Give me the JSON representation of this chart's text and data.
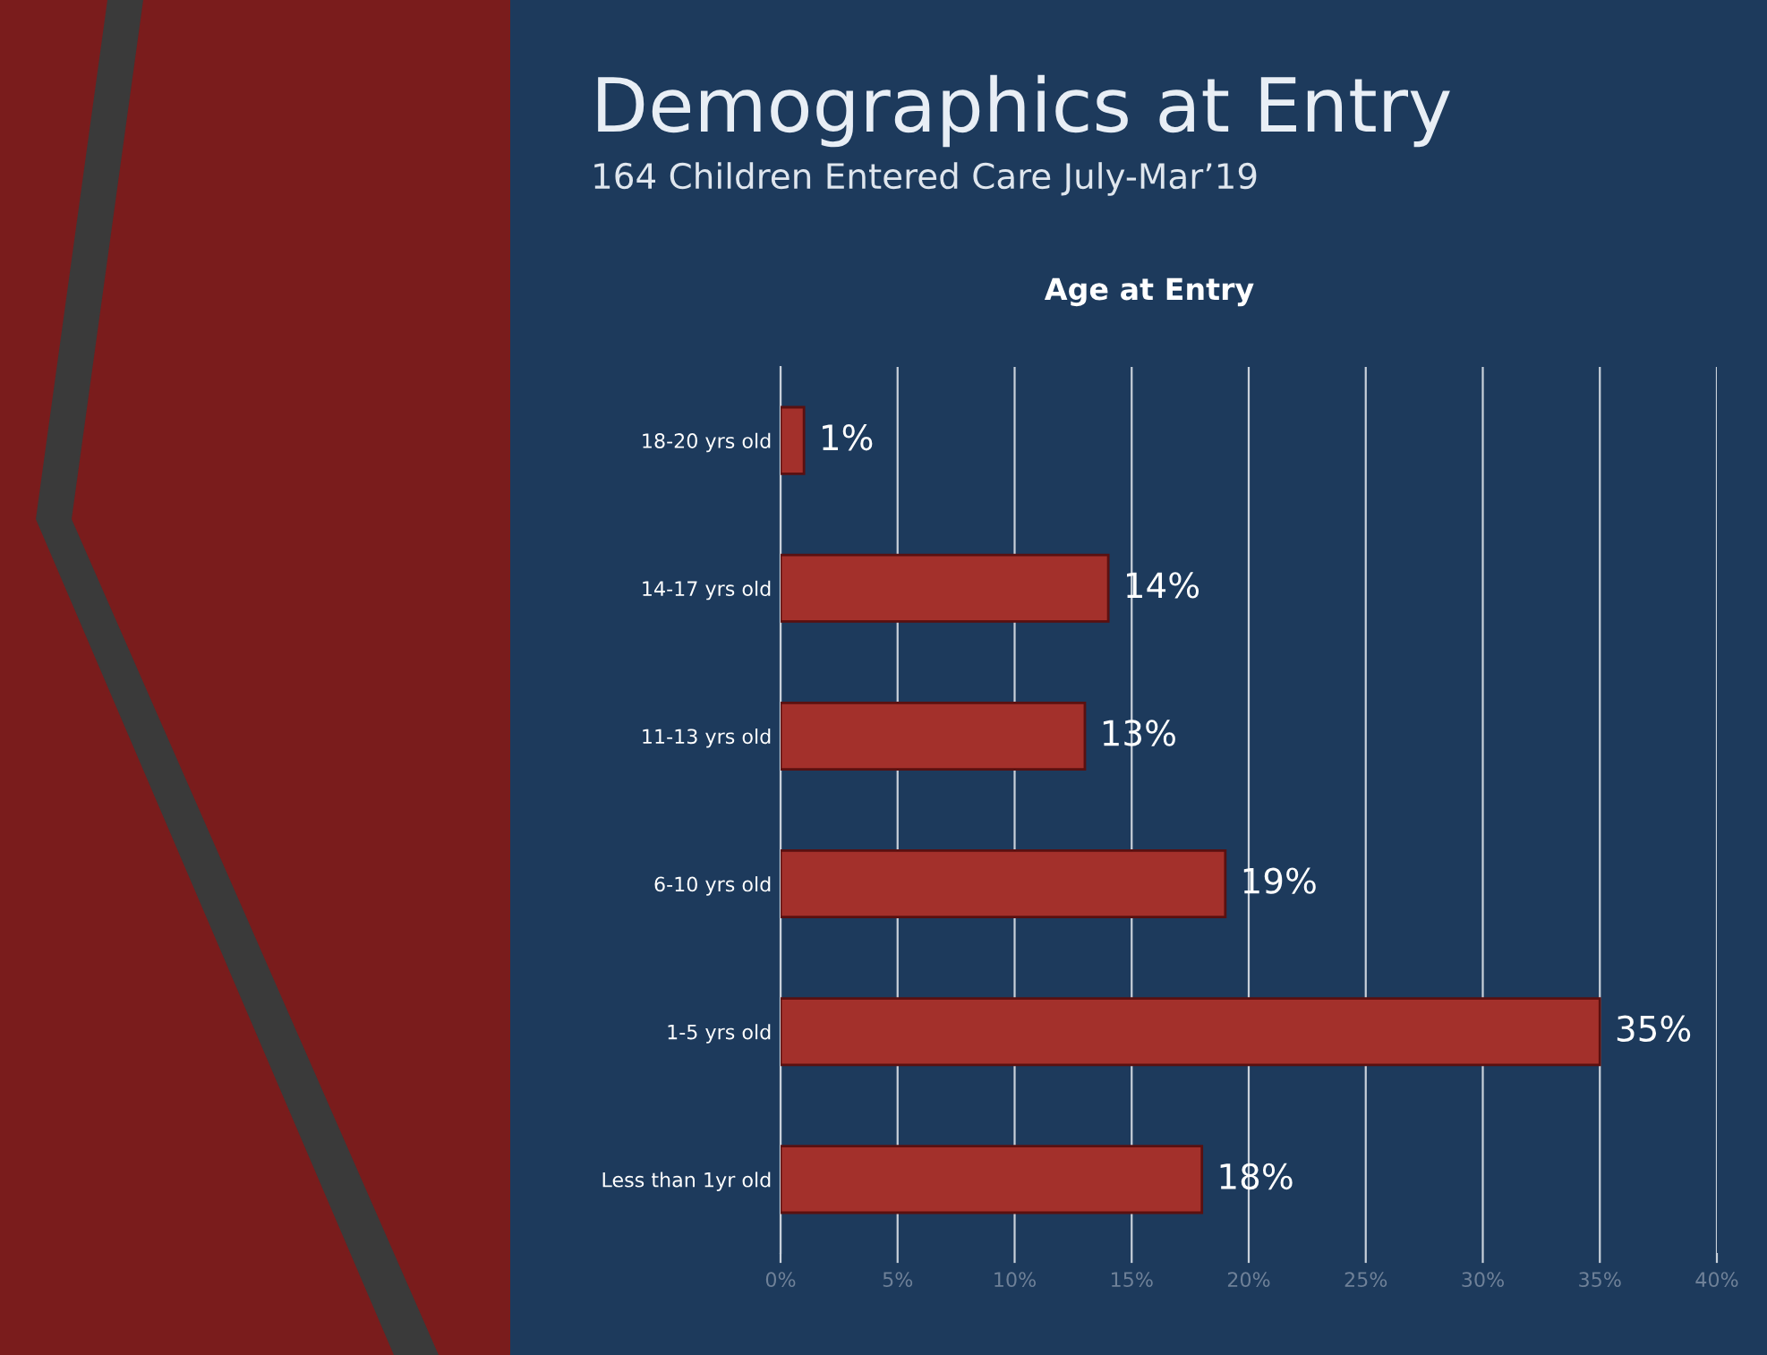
{
  "chart_data": {
    "type": "bar",
    "orientation": "horizontal",
    "title": "Demographics at Entry",
    "subtitle": "164 Children Entered Care July-Mar’19",
    "annotations": [
      "Age at Entry"
    ],
    "categories": [
      "18-20 yrs old",
      "14-17 yrs old",
      "11-13 yrs old",
      "6-10 yrs old",
      "1-5 yrs old",
      "Less than 1yr old"
    ],
    "values": [
      1,
      14,
      13,
      19,
      35,
      18
    ],
    "value_labels": [
      "1%",
      "14%",
      "13%",
      "19%",
      "35%",
      "18%"
    ],
    "color": "#a3302b",
    "xlim": [
      0,
      40
    ],
    "xticks": [
      {
        "value": 0,
        "label": "0%"
      },
      {
        "value": 5,
        "label": "5%"
      },
      {
        "value": 10,
        "label": "10%"
      },
      {
        "value": 15,
        "label": "15%"
      },
      {
        "value": 20,
        "label": "20%"
      },
      {
        "value": 25,
        "label": "25%"
      },
      {
        "value": 30,
        "label": "30%"
      },
      {
        "value": 35,
        "label": "35%"
      },
      {
        "value": 40,
        "label": "40%"
      }
    ],
    "grid": "x"
  }
}
